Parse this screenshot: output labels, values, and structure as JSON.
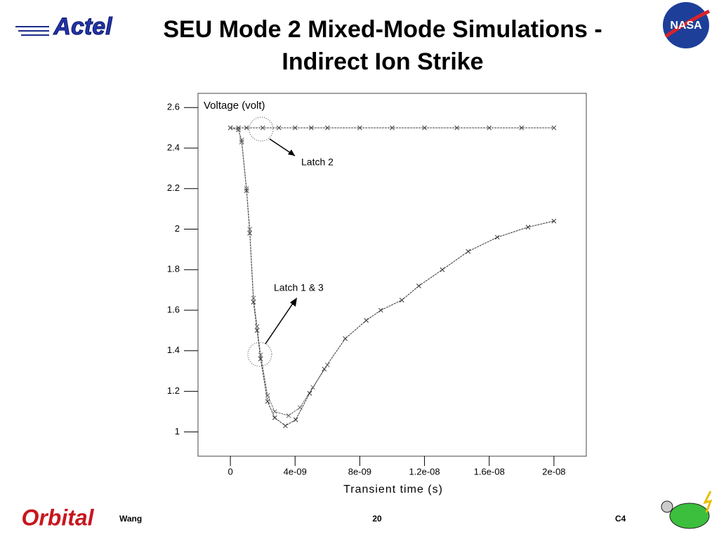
{
  "logos": [
    "Actel",
    "NASA",
    "Orbital"
  ],
  "footer": {
    "author": "Wang",
    "page": "20",
    "code": "C4"
  },
  "chart_data": {
    "type": "line",
    "title": [
      "SEU Mode 2 Mixed-Mode Simulations -",
      "Indirect Ion Strike"
    ],
    "y_label": "Voltage (volt)",
    "x_label": "Transient time (s)",
    "annotations": [
      "Latch 2",
      "Latch 1 & 3"
    ],
    "xlim": [
      -2e-09,
      2.2e-08
    ],
    "ylim": [
      0.88,
      2.67
    ],
    "xticks": [
      {
        "value": 0,
        "label": "0"
      },
      {
        "value": 4e-09,
        "label": "4e-09"
      },
      {
        "value": 8e-09,
        "label": "8e-09"
      },
      {
        "value": 1.2e-08,
        "label": "1.2e-08"
      },
      {
        "value": 1.6e-08,
        "label": "1.6e-08"
      },
      {
        "value": 2e-08,
        "label": "2e-08"
      }
    ],
    "yticks": [
      1,
      1.2,
      1.4,
      1.6,
      1.8,
      2,
      2.2,
      2.4,
      2.6
    ],
    "series": [
      {
        "color": "#444444",
        "x": [
          0,
          5e-10,
          1e-09,
          2e-09,
          3e-09,
          4e-09,
          5e-09,
          6e-09,
          8e-09,
          1e-08,
          1.2e-08,
          1.4e-08,
          1.6e-08,
          1.8e-08,
          2e-08
        ],
        "values": [
          2.5,
          2.5,
          2.5,
          2.5,
          2.5,
          2.5,
          2.5,
          2.5,
          2.5,
          2.5,
          2.5,
          2.5,
          2.5,
          2.5,
          2.5
        ]
      },
      {
        "color": "#333333",
        "x": [
          0,
          5e-10,
          7e-10,
          1e-09,
          1.2e-09,
          1.43e-09,
          1.65e-09,
          1.87e-09,
          2.3e-09,
          2.74e-09,
          3.4e-09,
          4.04e-09,
          4.9e-09,
          5.8e-09,
          7.1e-09,
          8.4e-09,
          9.3e-09,
          1.06e-08,
          1.165e-08,
          1.31e-08,
          1.47e-08,
          1.65e-08,
          1.84e-08,
          2e-08
        ],
        "values": [
          2.5,
          2.49,
          2.43,
          2.19,
          1.98,
          1.64,
          1.5,
          1.36,
          1.15,
          1.07,
          1.03,
          1.06,
          1.19,
          1.31,
          1.46,
          1.55,
          1.6,
          1.65,
          1.72,
          1.8,
          1.89,
          1.96,
          2.01,
          2.04
        ]
      },
      {
        "color": "#666666",
        "x": [
          0,
          5e-10,
          7e-10,
          1e-09,
          1.2e-09,
          1.43e-09,
          1.65e-09,
          1.87e-09,
          2.3e-09,
          2.74e-09,
          3.6e-09,
          4.3e-09,
          5.1e-09,
          6e-09
        ],
        "values": [
          2.5,
          2.49,
          2.44,
          2.2,
          2.0,
          1.66,
          1.52,
          1.38,
          1.18,
          1.1,
          1.08,
          1.12,
          1.22,
          1.33
        ]
      }
    ]
  }
}
